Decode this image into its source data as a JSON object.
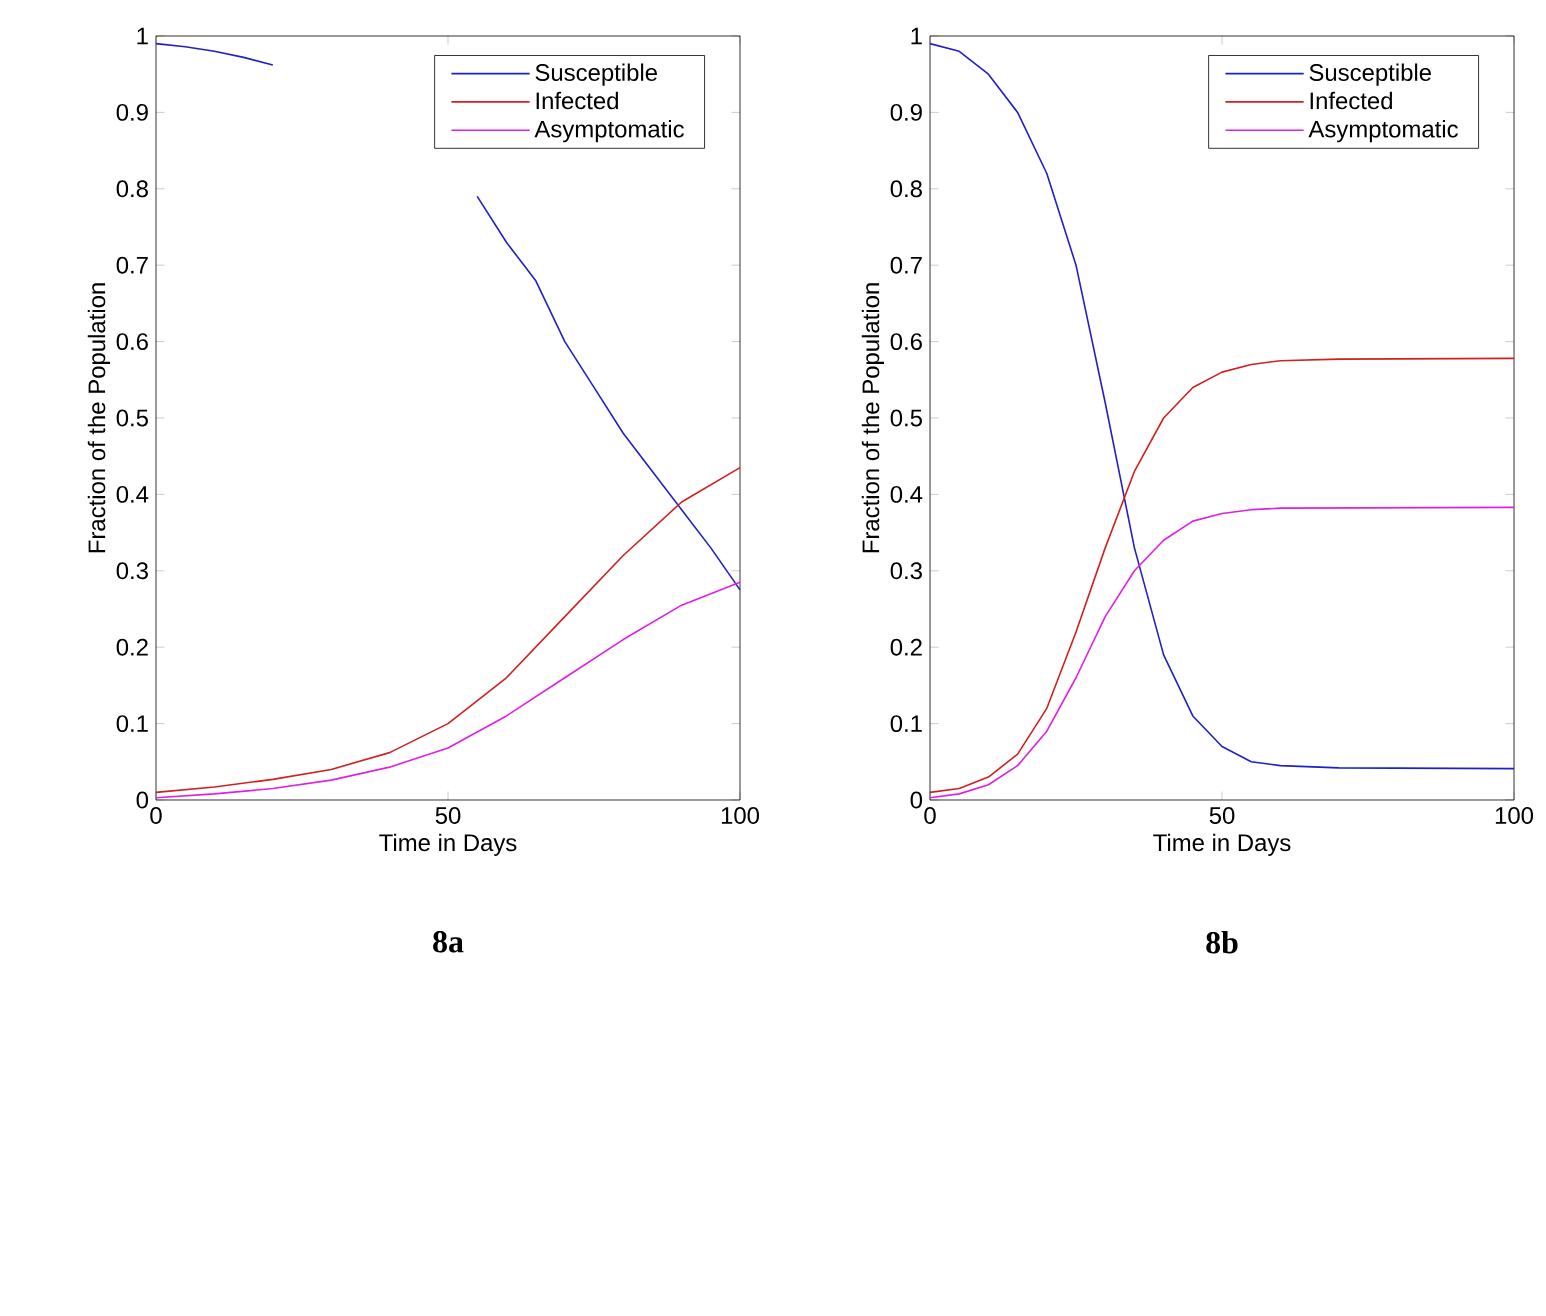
{
  "chart_data": [
    {
      "type": "line",
      "xlabel": "Time in Days",
      "ylabel": "Fraction of the Population",
      "annotations": [
        "8a"
      ],
      "xlim": [
        0,
        100
      ],
      "ylim": [
        0,
        1
      ],
      "xticks": [
        0,
        50,
        100
      ],
      "yticks": [
        0,
        0.1,
        0.2,
        0.3,
        0.4,
        0.5,
        0.6,
        0.7,
        0.8,
        0.9,
        1
      ],
      "legend": "top right",
      "grid": false,
      "marker": "none",
      "line_style": "solid",
      "series": [
        {
          "name": "Susceptible",
          "color": "#2020c8",
          "x": [
            0,
            5,
            10,
            15,
            20,
            25,
            30,
            35,
            40,
            45,
            50,
            55,
            60,
            65,
            70,
            75,
            80,
            85,
            90,
            95,
            100
          ],
          "values": [
            0.99,
            0.986,
            0.98,
            0.972,
            0.962,
            null,
            null,
            null,
            null,
            null,
            null,
            0.79,
            0.73,
            0.68,
            0.6,
            0.54,
            0.48,
            0.43,
            0.38,
            0.33,
            0.275
          ]
        },
        {
          "name": "Infected",
          "color": "#d02020",
          "x": [
            0,
            10,
            20,
            30,
            40,
            50,
            60,
            70,
            80,
            90,
            100
          ],
          "values": [
            0.01,
            0.017,
            0.027,
            0.04,
            0.062,
            0.1,
            0.16,
            0.24,
            0.32,
            0.39,
            0.435
          ]
        },
        {
          "name": "Asymptomatic",
          "color": "#e020e0",
          "x": [
            0,
            10,
            20,
            30,
            40,
            50,
            60,
            70,
            80,
            90,
            100
          ],
          "values": [
            0.003,
            0.008,
            0.015,
            0.026,
            0.043,
            0.068,
            0.11,
            0.16,
            0.21,
            0.255,
            0.285
          ]
        }
      ]
    },
    {
      "type": "line",
      "xlabel": "Time in Days",
      "ylabel": "Fraction of the Population",
      "annotations": [
        "8b"
      ],
      "xlim": [
        0,
        100
      ],
      "ylim": [
        0,
        1
      ],
      "xticks": [
        0,
        50,
        100
      ],
      "yticks": [
        0,
        0.1,
        0.2,
        0.3,
        0.4,
        0.5,
        0.6,
        0.7,
        0.8,
        0.9,
        1
      ],
      "legend": "top right",
      "grid": false,
      "marker": "none",
      "line_style": "solid",
      "series": [
        {
          "name": "Susceptible",
          "color": "#2020c8",
          "x": [
            0,
            5,
            10,
            15,
            20,
            25,
            30,
            35,
            40,
            45,
            50,
            55,
            60,
            70,
            100
          ],
          "values": [
            0.99,
            0.98,
            0.95,
            0.9,
            0.82,
            0.7,
            0.52,
            0.33,
            0.19,
            0.11,
            0.07,
            0.05,
            0.045,
            0.042,
            0.041
          ]
        },
        {
          "name": "Infected",
          "color": "#d02020",
          "x": [
            0,
            5,
            10,
            15,
            20,
            25,
            30,
            35,
            40,
            45,
            50,
            55,
            60,
            70,
            100
          ],
          "values": [
            0.01,
            0.015,
            0.03,
            0.06,
            0.12,
            0.22,
            0.33,
            0.43,
            0.5,
            0.54,
            0.56,
            0.57,
            0.575,
            0.577,
            0.578
          ]
        },
        {
          "name": "Asymptomatic",
          "color": "#e020e0",
          "x": [
            0,
            5,
            10,
            15,
            20,
            25,
            30,
            35,
            40,
            45,
            50,
            55,
            60,
            100
          ],
          "values": [
            0.003,
            0.008,
            0.02,
            0.045,
            0.09,
            0.16,
            0.24,
            0.3,
            0.34,
            0.365,
            0.375,
            0.38,
            0.382,
            0.383
          ]
        }
      ]
    }
  ]
}
